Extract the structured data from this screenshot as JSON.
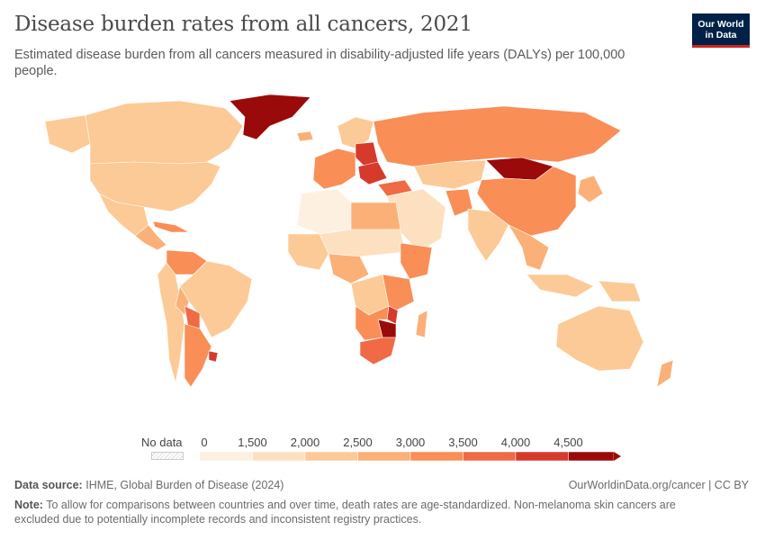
{
  "title": "Disease burden rates from all cancers, 2021",
  "subtitle": "Estimated disease burden from all cancers measured in disability-adjusted life years (DALYs) per 100,000 people.",
  "logo": {
    "line1": "Our World",
    "line2": "in Data"
  },
  "legend": {
    "no_data_label": "No data",
    "ticks": [
      "0",
      "1,500",
      "2,000",
      "2,500",
      "3,000",
      "3,500",
      "4,000",
      "4,500"
    ],
    "colors": [
      "#fef0e1",
      "#fde0c0",
      "#fcca96",
      "#fbb077",
      "#f98e56",
      "#ef6a45",
      "#d63a2b",
      "#9b0a0a"
    ]
  },
  "footer": {
    "source_label": "Data source:",
    "source_text": "IHME, Global Burden of Disease (2024)",
    "url": "OurWorldinData.org/cancer | CC BY",
    "note_label": "Note:",
    "note_text": "To allow for comparisons between countries and over time, death rates are age-standardized. Non-melanoma skin cancers are excluded due to potentially incomplete records and inconsistent registry practices."
  },
  "map_regions": [
    {
      "name": "canada",
      "bin": 2
    },
    {
      "name": "united-states",
      "bin": 2
    },
    {
      "name": "alaska",
      "bin": 2
    },
    {
      "name": "greenland",
      "bin": 7
    },
    {
      "name": "mexico",
      "bin": 2
    },
    {
      "name": "central-america",
      "bin": 3
    },
    {
      "name": "caribbean",
      "bin": 4
    },
    {
      "name": "venezuela-colombia",
      "bin": 4
    },
    {
      "name": "brazil",
      "bin": 2
    },
    {
      "name": "peru-chile-west",
      "bin": 2
    },
    {
      "name": "bolivia",
      "bin": 3
    },
    {
      "name": "paraguay",
      "bin": 5
    },
    {
      "name": "argentina",
      "bin": 4
    },
    {
      "name": "uruguay",
      "bin": 6
    },
    {
      "name": "iceland",
      "bin": 3
    },
    {
      "name": "western-europe",
      "bin": 4
    },
    {
      "name": "central-europe",
      "bin": 6
    },
    {
      "name": "hungary-region",
      "bin": 6
    },
    {
      "name": "scandinavia",
      "bin": 2
    },
    {
      "name": "russia",
      "bin": 4
    },
    {
      "name": "kazakhstan",
      "bin": 2
    },
    {
      "name": "mongolia",
      "bin": 7
    },
    {
      "name": "china",
      "bin": 4
    },
    {
      "name": "japan-korea",
      "bin": 3
    },
    {
      "name": "middle-east",
      "bin": 1
    },
    {
      "name": "turkey",
      "bin": 5
    },
    {
      "name": "afghanistan",
      "bin": 4
    },
    {
      "name": "india",
      "bin": 2
    },
    {
      "name": "southeast-asia",
      "bin": 3
    },
    {
      "name": "indonesia",
      "bin": 2
    },
    {
      "name": "papua",
      "bin": 2
    },
    {
      "name": "australia",
      "bin": 2
    },
    {
      "name": "new-zealand",
      "bin": 3
    },
    {
      "name": "north-africa-west",
      "bin": 0
    },
    {
      "name": "libya-egypt",
      "bin": 3
    },
    {
      "name": "sahel",
      "bin": 1
    },
    {
      "name": "west-africa",
      "bin": 2
    },
    {
      "name": "central-africa",
      "bin": 3
    },
    {
      "name": "ethiopia-somalia",
      "bin": 4
    },
    {
      "name": "drc",
      "bin": 2
    },
    {
      "name": "east-africa",
      "bin": 4
    },
    {
      "name": "malawi",
      "bin": 6
    },
    {
      "name": "zimbabwe-mozambique",
      "bin": 7
    },
    {
      "name": "southern-africa",
      "bin": 4
    },
    {
      "name": "south-africa",
      "bin": 5
    },
    {
      "name": "madagascar",
      "bin": 3
    }
  ]
}
